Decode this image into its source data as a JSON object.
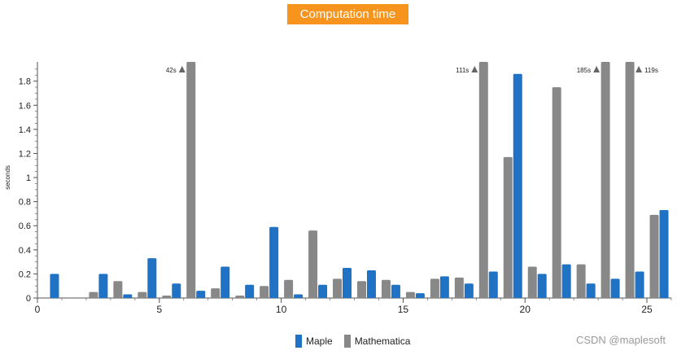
{
  "chart_data": {
    "type": "bar",
    "title": "Computation time",
    "xlabel": "",
    "ylabel": "seconds",
    "xlim": [
      0,
      26
    ],
    "ylim": [
      0,
      1.96
    ],
    "x_ticks": [
      "0",
      "5",
      "10",
      "15",
      "20",
      "25"
    ],
    "x_tick_values": [
      0,
      5,
      10,
      15,
      20,
      25
    ],
    "y_ticks": [
      "0",
      "0.2",
      "0.4",
      "0.6",
      "0.8",
      "1",
      "1.2",
      "1.4",
      "1.6",
      "1.8"
    ],
    "y_tick_values": [
      0,
      0.2,
      0.4,
      0.6,
      0.8,
      1.0,
      1.2,
      1.4,
      1.6,
      1.8
    ],
    "legend_position": "bottom",
    "series": [
      {
        "name": "Maple",
        "color": "#1f72c4",
        "x": [
          0.7,
          2.7,
          3.7,
          4.7,
          5.7,
          6.7,
          7.7,
          8.7,
          9.7,
          10.7,
          11.7,
          12.7,
          13.7,
          14.7,
          15.7,
          16.7,
          17.7,
          18.7,
          19.7,
          20.7,
          21.7,
          22.7,
          23.7,
          24.7,
          25.7
        ],
        "values": [
          0.2,
          0.2,
          0.03,
          0.33,
          0.12,
          0.06,
          0.26,
          0.11,
          0.59,
          0.03,
          0.11,
          0.25,
          0.23,
          0.11,
          0.04,
          0.18,
          0.12,
          0.22,
          1.86,
          0.2,
          0.28,
          0.12,
          0.16,
          0.22,
          0.73
        ]
      },
      {
        "name": "Mathematica",
        "color": "#888889",
        "x": [
          2.3,
          3.3,
          4.3,
          5.3,
          6.3,
          7.3,
          8.3,
          9.3,
          10.3,
          11.3,
          12.3,
          13.3,
          14.3,
          15.3,
          16.3,
          17.3,
          18.3,
          19.3,
          20.3,
          21.3,
          22.3,
          23.3,
          24.3,
          25.3
        ],
        "values": [
          0.05,
          0.14,
          0.05,
          0.02,
          1.96,
          0.08,
          0.02,
          0.1,
          0.15,
          0.56,
          0.16,
          0.14,
          0.15,
          0.05,
          0.16,
          0.17,
          1.96,
          1.17,
          0.26,
          1.75,
          0.28,
          1.96,
          1.96,
          0.69
        ]
      }
    ],
    "annotations": [
      {
        "text": "42s",
        "side": "left",
        "x": 6.3
      },
      {
        "text": "111s",
        "side": "left",
        "x": 18.3
      },
      {
        "text": "185s",
        "side": "left",
        "x": 23.3
      },
      {
        "text": "119s",
        "side": "right",
        "x": 24.3
      }
    ]
  },
  "watermark": "CSDN @maplesoft"
}
